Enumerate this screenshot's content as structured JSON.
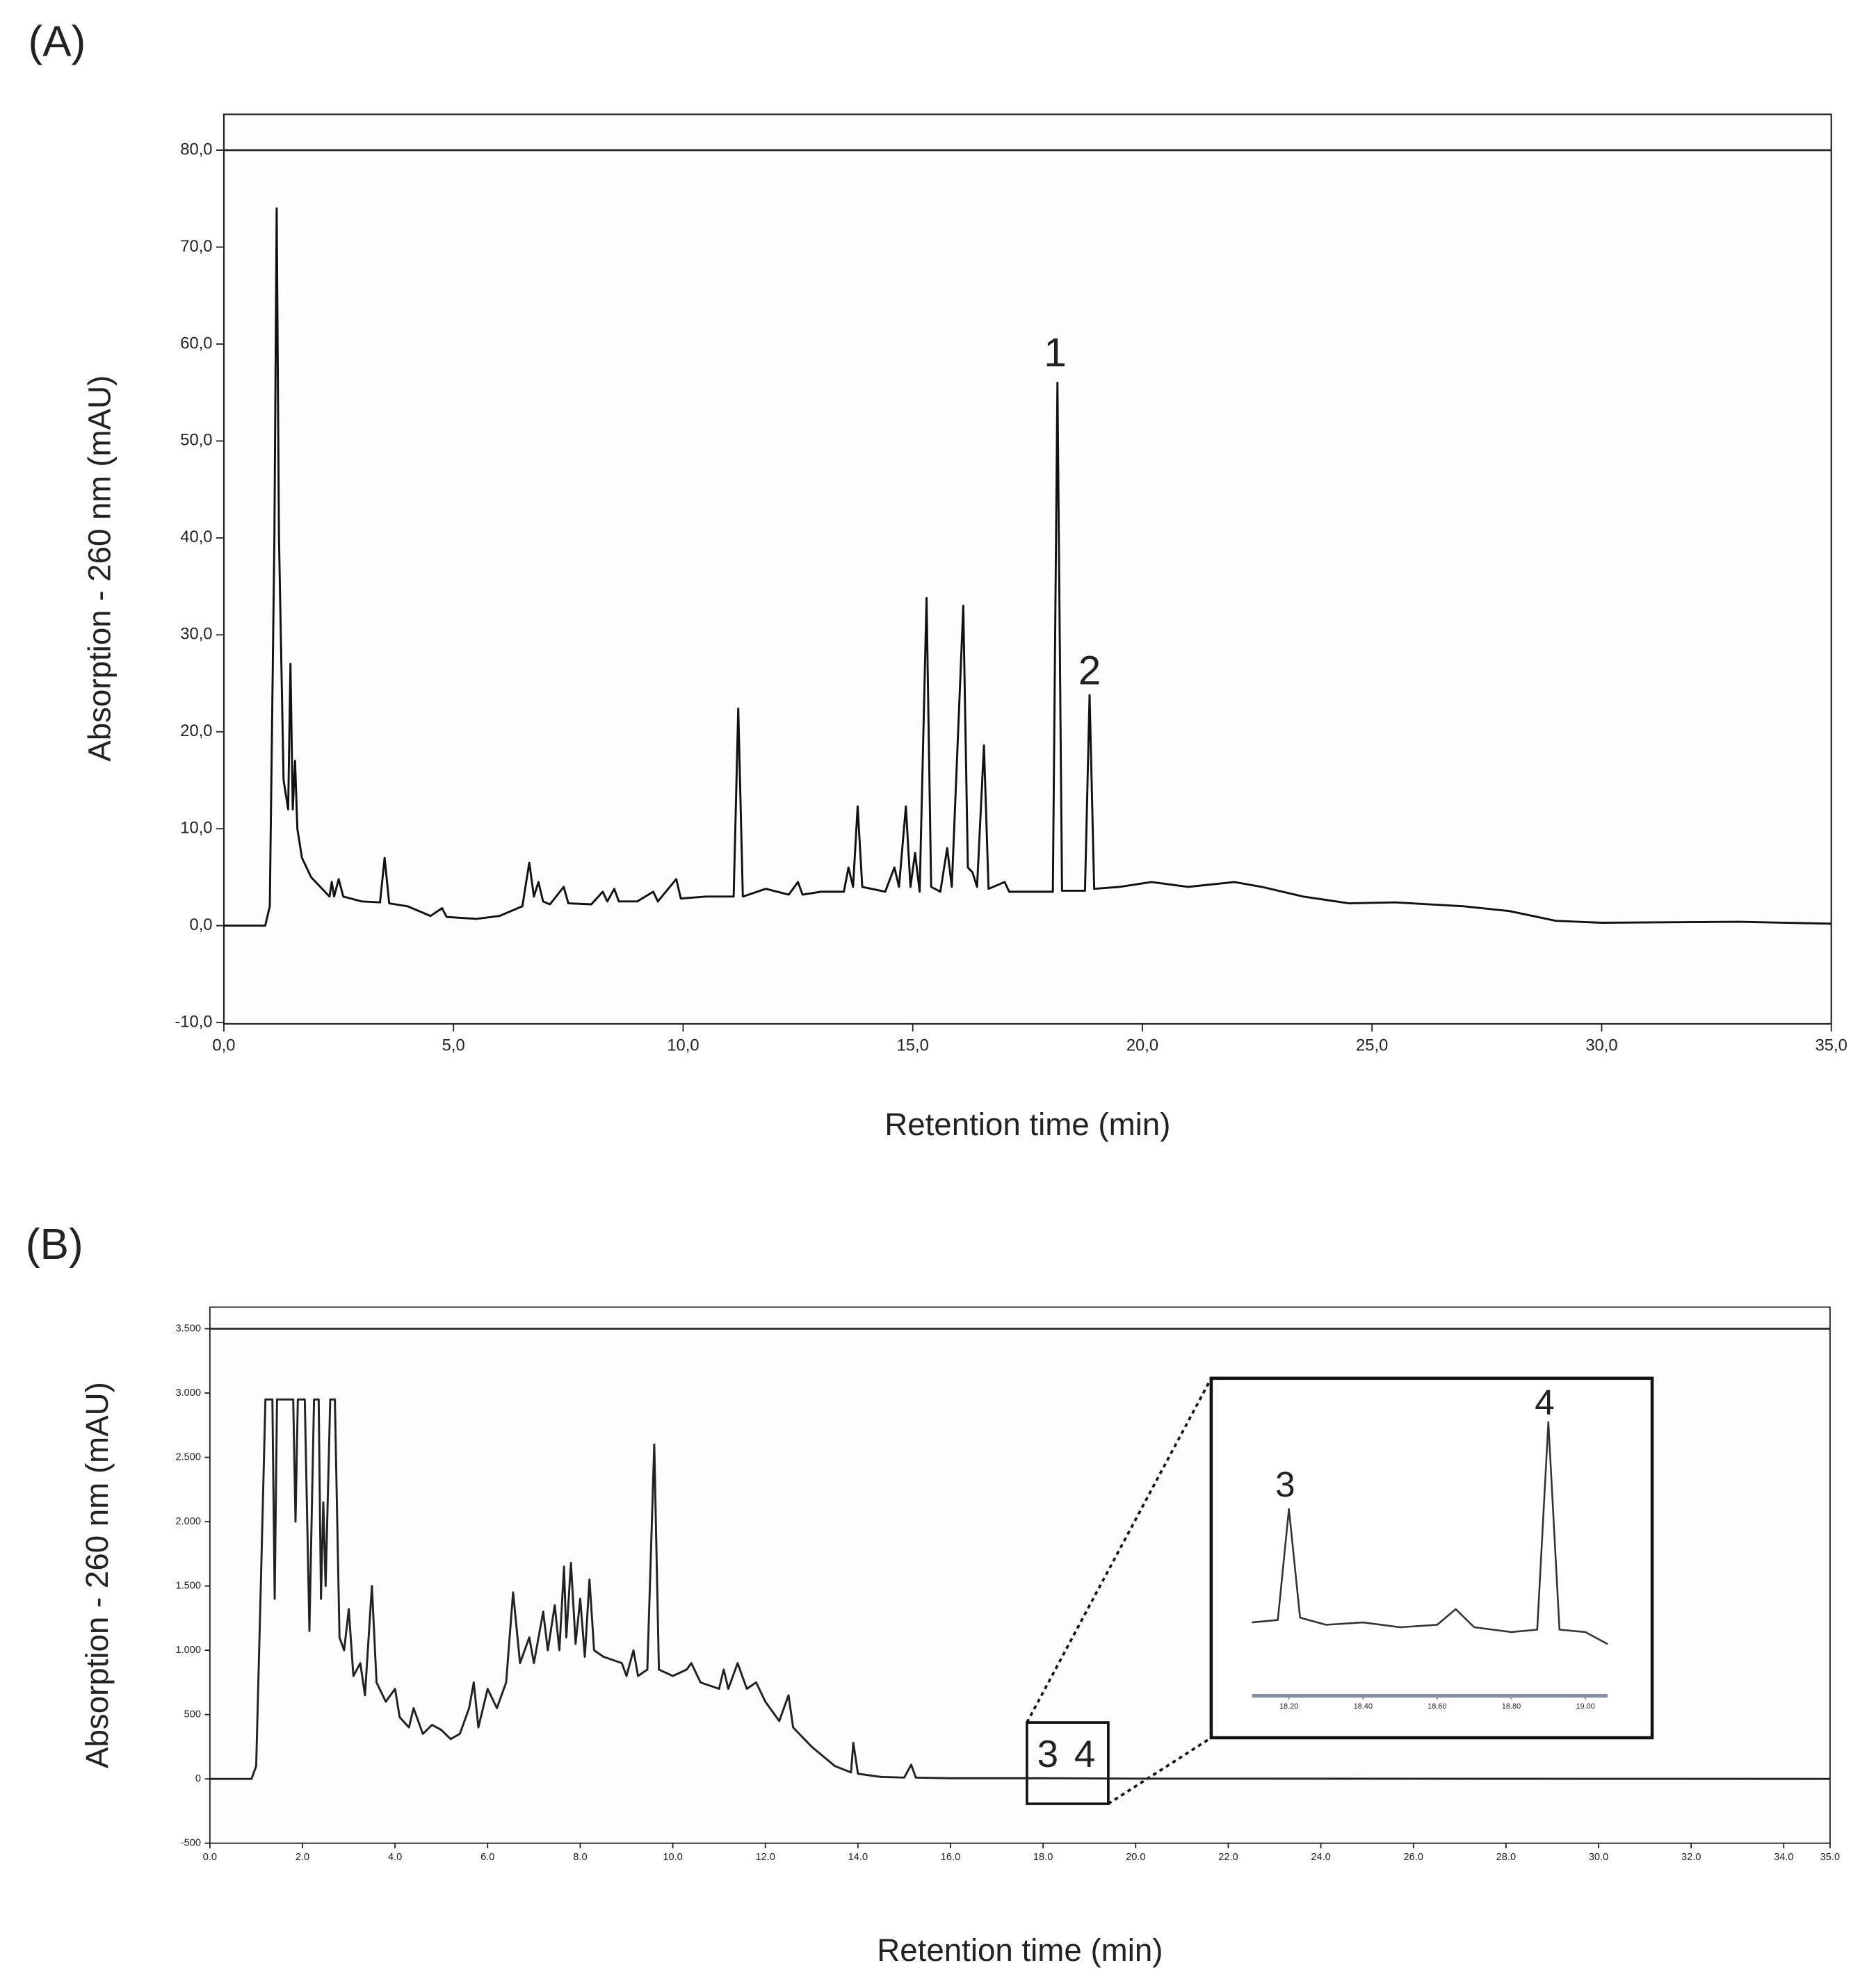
{
  "chart_data": [
    {
      "type": "line",
      "panel_label": "(A)",
      "xlabel": "Retention time (min)",
      "ylabel": "Absorption - 260 nm (mAU)",
      "xlim": [
        0,
        35
      ],
      "ylim": [
        -10,
        83.7
      ],
      "xticks": [
        {
          "value": 0,
          "label": "0,0"
        },
        {
          "value": 5,
          "label": "5,0"
        },
        {
          "value": 10,
          "label": "10,0"
        },
        {
          "value": 15,
          "label": "15,0"
        },
        {
          "value": 20,
          "label": "20,0"
        },
        {
          "value": 25,
          "label": "25,0"
        },
        {
          "value": 30,
          "label": "30,0"
        },
        {
          "value": 35,
          "label": "35,0"
        }
      ],
      "yticks": [
        {
          "value": -10,
          "label": "-10,0"
        },
        {
          "value": 0,
          "label": "0,0"
        },
        {
          "value": 10,
          "label": "10,0"
        },
        {
          "value": 20,
          "label": "20,0"
        },
        {
          "value": 30,
          "label": "30,0"
        },
        {
          "value": 40,
          "label": "40,0"
        },
        {
          "value": 50,
          "label": "50,0"
        },
        {
          "value": 60,
          "label": "60,0"
        },
        {
          "value": 70,
          "label": "70,0"
        },
        {
          "value": 80,
          "label": "80,0"
        }
      ],
      "color": "#111111",
      "x": [
        0,
        0.9,
        1.0,
        1.1,
        1.15,
        1.2,
        1.3,
        1.4,
        1.45,
        1.5,
        1.55,
        1.6,
        1.7,
        1.9,
        2.1,
        2.3,
        2.35,
        2.4,
        2.5,
        2.6,
        3.0,
        3.4,
        3.5,
        3.6,
        4.0,
        4.5,
        4.75,
        4.85,
        5.5,
        6.0,
        6.5,
        6.65,
        6.75,
        6.85,
        6.95,
        7.1,
        7.4,
        7.5,
        8.0,
        8.25,
        8.35,
        8.5,
        8.6,
        9.0,
        9.35,
        9.45,
        9.85,
        9.95,
        10.5,
        11.1,
        11.2,
        11.3,
        11.8,
        12.3,
        12.5,
        12.6,
        13.0,
        13.5,
        13.6,
        13.7,
        13.8,
        13.9,
        14.4,
        14.6,
        14.7,
        14.85,
        14.95,
        15.05,
        15.15,
        15.3,
        15.4,
        15.6,
        15.75,
        15.85,
        16.1,
        16.2,
        16.3,
        16.4,
        16.55,
        16.65,
        17.0,
        17.1,
        17.8,
        18.05,
        18.15,
        18.25,
        18.75,
        18.85,
        18.95,
        19.5,
        20.2,
        21,
        22,
        22.6,
        23.5,
        24.5,
        25.5,
        27,
        28,
        29,
        30,
        33,
        35
      ],
      "values": [
        0,
        0,
        2,
        40,
        74,
        40,
        15,
        12,
        27,
        12,
        17,
        10,
        7,
        5,
        4,
        3,
        4.5,
        3,
        4.8,
        3,
        2.5,
        2.4,
        7,
        2.3,
        2,
        1,
        1.8,
        0.9,
        0.7,
        1,
        2,
        6.5,
        3,
        4.5,
        2.5,
        2.2,
        4,
        2.3,
        2.2,
        3.5,
        2.5,
        3.8,
        2.5,
        2.5,
        3.5,
        2.5,
        4.8,
        2.8,
        3,
        3,
        22.4,
        3,
        3.8,
        3.2,
        4.5,
        3.2,
        3.5,
        3.5,
        6,
        4,
        12.3,
        4,
        3.5,
        6,
        4,
        12.3,
        4,
        7.5,
        3.5,
        33.8,
        4,
        3.5,
        8,
        4,
        33,
        6,
        5.5,
        4,
        18.6,
        3.8,
        4.5,
        3.5,
        3.5,
        3.5,
        56,
        3.6,
        3.6,
        23.8,
        3.8,
        4,
        4.5,
        4,
        4.5,
        4,
        3,
        2.3,
        2.4,
        2,
        1.5,
        0.5,
        0.3,
        0.4,
        0.2
      ],
      "annotations": [
        {
          "text": "1",
          "x": 18.1,
          "y": 58.8
        },
        {
          "text": "2",
          "x": 18.85,
          "y": 26
        }
      ]
    },
    {
      "type": "line",
      "panel_label": "(B)",
      "xlabel": "Retention time (min)",
      "ylabel": "Absorption - 260 nm (mAU)",
      "xlim": [
        0,
        35
      ],
      "ylim": [
        -500,
        3668
      ],
      "xticks": [
        {
          "value": 0,
          "label": "0.0"
        },
        {
          "value": 2,
          "label": "2.0"
        },
        {
          "value": 4,
          "label": "4.0"
        },
        {
          "value": 6,
          "label": "6.0"
        },
        {
          "value": 8,
          "label": "8.0"
        },
        {
          "value": 10,
          "label": "10.0"
        },
        {
          "value": 12,
          "label": "12.0"
        },
        {
          "value": 14,
          "label": "14.0"
        },
        {
          "value": 16,
          "label": "16.0"
        },
        {
          "value": 18,
          "label": "18.0"
        },
        {
          "value": 20,
          "label": "20.0"
        },
        {
          "value": 22,
          "label": "22.0"
        },
        {
          "value": 24,
          "label": "24.0"
        },
        {
          "value": 26,
          "label": "26.0"
        },
        {
          "value": 28,
          "label": "28.0"
        },
        {
          "value": 30,
          "label": "30.0"
        },
        {
          "value": 32,
          "label": "32.0"
        },
        {
          "value": 34,
          "label": "34.0"
        },
        {
          "value": 35,
          "label": "35.0"
        }
      ],
      "yticks": [
        -500,
        0,
        500,
        {
          "value": 1000,
          "label": "1.000"
        },
        {
          "value": 1500,
          "label": "1.500"
        },
        {
          "value": 2000,
          "label": "2.000"
        },
        {
          "value": 2500,
          "label": "2.500"
        },
        {
          "value": 3000,
          "label": "3.000"
        },
        {
          "value": 3500,
          "label": "3.500"
        }
      ],
      "color": "#222222",
      "x": [
        0,
        0.9,
        1.0,
        1.1,
        1.2,
        1.35,
        1.4,
        1.45,
        1.8,
        1.85,
        1.9,
        2.05,
        2.15,
        2.25,
        2.35,
        2.4,
        2.45,
        2.5,
        2.6,
        2.7,
        2.8,
        2.9,
        3.0,
        3.1,
        3.25,
        3.35,
        3.5,
        3.6,
        3.8,
        4.0,
        4.1,
        4.3,
        4.4,
        4.6,
        4.8,
        5.0,
        5.2,
        5.4,
        5.6,
        5.7,
        5.8,
        6.0,
        6.2,
        6.4,
        6.55,
        6.7,
        6.9,
        7.0,
        7.2,
        7.3,
        7.45,
        7.55,
        7.65,
        7.7,
        7.8,
        7.9,
        8.0,
        8.1,
        8.2,
        8.3,
        8.5,
        8.9,
        9.0,
        9.15,
        9.25,
        9.45,
        9.6,
        9.7,
        10.0,
        10.3,
        10.4,
        10.6,
        11.0,
        11.1,
        11.2,
        11.4,
        11.6,
        11.8,
        12.0,
        12.3,
        12.5,
        12.6,
        13.0,
        13.5,
        13.85,
        13.9,
        14.0,
        14.5,
        15.0,
        15.15,
        15.25,
        16,
        18,
        20,
        35
      ],
      "values": [
        0,
        0,
        100,
        1500,
        2950,
        2950,
        1400,
        2950,
        2950,
        2000,
        2950,
        2950,
        1150,
        2950,
        2950,
        1400,
        2150,
        1500,
        2950,
        2950,
        1100,
        1000,
        1320,
        800,
        900,
        650,
        1500,
        750,
        600,
        700,
        480,
        400,
        550,
        350,
        420,
        380,
        310,
        350,
        550,
        750,
        400,
        700,
        550,
        750,
        1450,
        900,
        1100,
        900,
        1300,
        1000,
        1350,
        1000,
        1650,
        1100,
        1680,
        1050,
        1400,
        950,
        1550,
        1000,
        950,
        900,
        800,
        1000,
        800,
        850,
        2600,
        850,
        800,
        850,
        900,
        750,
        700,
        850,
        700,
        900,
        700,
        750,
        600,
        450,
        650,
        400,
        250,
        100,
        50,
        280,
        40,
        15,
        10,
        110,
        10,
        5,
        5,
        2,
        0
      ],
      "annotations": [
        {
          "text": "3",
          "x": 18.1,
          "y": 172
        },
        {
          "text": "4",
          "x": 18.9,
          "y": 172
        }
      ]
    },
    {
      "type": "line",
      "xlim": [
        18.1,
        19.06
      ],
      "ylim": [
        0,
        10
      ],
      "xticks": [
        {
          "value": 18.2,
          "label": "18.20"
        },
        {
          "value": 18.4,
          "label": "18.40"
        },
        {
          "value": 18.6,
          "label": "18.60"
        },
        {
          "value": 18.8,
          "label": "18.80"
        },
        {
          "value": 19.0,
          "label": "19.00"
        }
      ],
      "color": "#333333",
      "x": [
        18.1,
        18.17,
        18.2,
        18.23,
        18.3,
        18.4,
        18.5,
        18.6,
        18.65,
        18.7,
        18.8,
        18.87,
        18.9,
        18.93,
        19.0,
        19.06
      ],
      "values": [
        1.2,
        1.3,
        5.9,
        1.4,
        1.1,
        1.2,
        1.0,
        1.1,
        1.75,
        1.0,
        0.8,
        0.9,
        9.5,
        0.9,
        0.8,
        0.3
      ],
      "annotations": [
        {
          "text": "3",
          "x": 18.19,
          "y": 6.8
        },
        {
          "text": "4",
          "x": 18.89,
          "y": 10.2
        }
      ]
    }
  ]
}
